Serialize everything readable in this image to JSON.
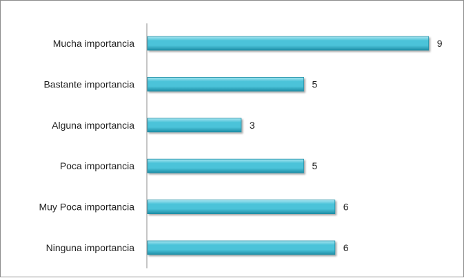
{
  "chart_data": {
    "type": "bar",
    "orientation": "horizontal",
    "categories": [
      "Mucha importancia",
      "Bastante importancia",
      "Alguna importancia",
      "Poca importancia",
      "Muy Poca importancia",
      "Ninguna importancia"
    ],
    "values": [
      9,
      5,
      3,
      5,
      6,
      6
    ],
    "data_labels": [
      "9",
      "5",
      "3",
      "5",
      "6",
      "6"
    ],
    "title": "",
    "xlabel": "",
    "ylabel": "",
    "xlim": [
      0,
      9
    ],
    "grid": false,
    "legend": "none",
    "bar_color": "#4bc3d9",
    "bar_color_dark": "#1f8ea6",
    "bar_color_light": "#a9e6f1"
  }
}
